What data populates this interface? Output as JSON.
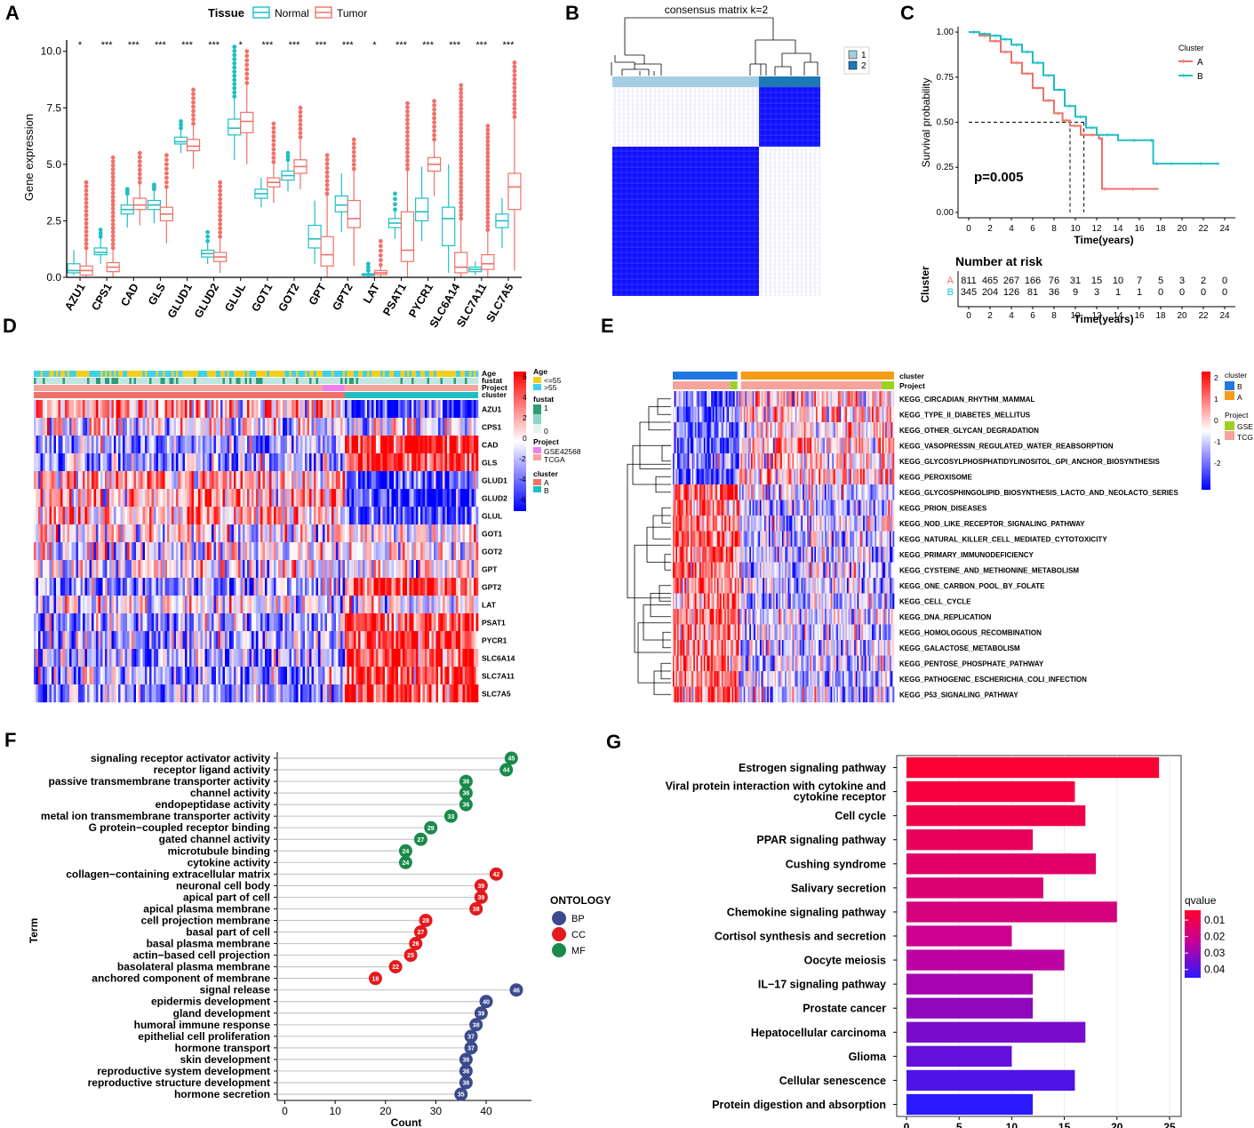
{
  "chart_data": [
    {
      "panel": "A",
      "type": "box",
      "ylabel": "Gene expression",
      "legend_title": "Tissue",
      "legend": [
        "Normal",
        "Tumor"
      ],
      "colors": {
        "normal": "#1fbfc4",
        "tumor": "#f0716a"
      },
      "ylim": [
        0,
        10.5
      ],
      "yticks": [
        "0.0",
        "2.5",
        "5.0",
        "7.5",
        "10.0"
      ],
      "yticks_values": [
        0,
        2.5,
        5,
        7.5,
        10
      ],
      "genes": [
        "AZU1",
        "CPS1",
        "CAD",
        "GLS",
        "GLUD1",
        "GLUD2",
        "GLUL",
        "GOT1",
        "GOT2",
        "GPT",
        "GPT2",
        "LAT",
        "PSAT1",
        "PYCR1",
        "SLC6A14",
        "SLC7A11",
        "SLC7A5"
      ],
      "significance": [
        "*",
        "***",
        "***",
        "***",
        "***",
        "***",
        "*",
        "***",
        "***",
        "***",
        "***",
        "*",
        "***",
        "***",
        "***",
        "***",
        "***"
      ],
      "normal": [
        [
          0.1,
          0.2,
          0.3,
          0.6,
          1.2
        ],
        [
          0.6,
          1.0,
          1.1,
          1.3,
          1.8
        ],
        [
          2.2,
          2.8,
          3.0,
          3.2,
          3.7
        ],
        [
          2.4,
          3.0,
          3.2,
          3.4,
          3.9
        ],
        [
          5.5,
          5.9,
          6.0,
          6.2,
          6.6
        ],
        [
          0.6,
          0.9,
          1.05,
          1.2,
          1.6
        ],
        [
          5.2,
          6.3,
          6.6,
          7.0,
          8.0
        ],
        [
          3.1,
          3.5,
          3.7,
          3.9,
          4.4
        ],
        [
          3.8,
          4.3,
          4.5,
          4.7,
          5.2
        ],
        [
          0.6,
          1.3,
          1.7,
          2.3,
          3.4
        ],
        [
          2.0,
          2.9,
          3.2,
          3.6,
          4.6
        ],
        [
          0.02,
          0.08,
          0.12,
          0.16,
          0.3
        ],
        [
          1.7,
          2.2,
          2.4,
          2.6,
          3.0
        ],
        [
          1.6,
          2.5,
          2.9,
          3.5,
          4.9
        ],
        [
          0.2,
          1.4,
          2.6,
          3.1,
          5.0
        ],
        [
          0.1,
          0.25,
          0.35,
          0.45,
          0.7
        ],
        [
          1.3,
          2.2,
          2.5,
          2.8,
          3.5
        ]
      ],
      "tumor": [
        [
          0.0,
          0.1,
          0.3,
          0.5,
          1.3
        ],
        [
          0.0,
          0.25,
          0.45,
          0.65,
          1.3
        ],
        [
          2.3,
          3.0,
          3.2,
          3.5,
          4.2
        ],
        [
          1.5,
          2.5,
          2.8,
          3.1,
          4.0
        ],
        [
          4.8,
          5.6,
          5.8,
          6.1,
          6.8
        ],
        [
          0.2,
          0.7,
          0.9,
          1.1,
          1.8
        ],
        [
          5.0,
          6.4,
          6.9,
          7.3,
          8.6
        ],
        [
          3.3,
          4.0,
          4.2,
          4.4,
          5.1
        ],
        [
          3.9,
          4.6,
          4.9,
          5.2,
          6.2
        ],
        [
          0.0,
          0.5,
          1.0,
          1.8,
          3.7
        ],
        [
          0.5,
          2.2,
          2.6,
          3.4,
          4.8
        ],
        [
          0.0,
          0.12,
          0.2,
          0.3,
          0.55
        ],
        [
          0.0,
          0.7,
          1.2,
          2.9,
          4.8
        ],
        [
          3.6,
          4.7,
          5.0,
          5.3,
          6.1
        ],
        [
          0.0,
          0.2,
          0.45,
          1.1,
          2.6
        ],
        [
          0.0,
          0.35,
          0.6,
          1.0,
          2.1
        ],
        [
          0.3,
          3.0,
          4.0,
          4.6,
          7.1
        ]
      ],
      "outlier_top_normal": [
        1.2,
        2.1,
        3.9,
        4.1,
        6.9,
        2.0,
        10.2,
        null,
        5.5,
        null,
        null,
        0.6,
        3.7,
        null,
        null,
        null,
        null
      ],
      "outlier_top_tumor": [
        4.2,
        5.3,
        5.5,
        5.4,
        8.3,
        4.2,
        10.0,
        6.8,
        7.5,
        5.4,
        6.1,
        1.6,
        7.7,
        7.8,
        8.5,
        6.7,
        9.5
      ]
    },
    {
      "panel": "B",
      "type": "heatmap",
      "title": "consensus matrix k=2",
      "legend": [
        "1",
        "2"
      ],
      "legend_colors": [
        "#a6cee3",
        "#1f78b4"
      ],
      "cluster_fractions": [
        0.7,
        0.3
      ]
    },
    {
      "panel": "C",
      "type": "line",
      "subtype": "kaplan-meier",
      "ylabel": "Survival probability",
      "xlabel": "Time(years)",
      "legend_title": "Cluster",
      "legend": [
        "A",
        "B"
      ],
      "colors": {
        "A": "#f0716a",
        "B": "#1fbfc4"
      },
      "pvalue": "p=0.005",
      "xlim": [
        -1,
        25
      ],
      "ylim": [
        -0.03,
        1.03
      ],
      "xticks": [
        "0",
        "2",
        "4",
        "6",
        "8",
        "10",
        "12",
        "14",
        "16",
        "18",
        "20",
        "22",
        "24"
      ],
      "xticks_values": [
        0,
        2,
        4,
        6,
        8,
        10,
        12,
        14,
        16,
        18,
        20,
        22,
        24
      ],
      "yticks": [
        "0.00",
        "0.25",
        "0.50",
        "0.75",
        "1.00"
      ],
      "yticks_values": [
        0,
        0.25,
        0.5,
        0.75,
        1.0
      ],
      "series": [
        {
          "name": "A",
          "x": [
            0,
            1,
            2,
            3,
            4,
            5,
            6,
            7,
            8,
            8.8,
            9.5,
            10.5,
            11,
            12.2,
            12.5,
            13,
            17.8
          ],
          "y": [
            1.0,
            0.98,
            0.95,
            0.89,
            0.83,
            0.77,
            0.69,
            0.62,
            0.55,
            0.51,
            0.48,
            0.43,
            0.43,
            0.41,
            0.13,
            0.13,
            0.13
          ]
        },
        {
          "name": "B",
          "x": [
            0,
            1,
            2,
            3,
            4,
            5,
            6,
            7,
            8,
            9,
            10,
            11,
            12,
            14,
            17,
            17.3,
            18,
            20,
            23.5
          ],
          "y": [
            1.0,
            0.99,
            0.98,
            0.96,
            0.93,
            0.89,
            0.83,
            0.76,
            0.68,
            0.59,
            0.53,
            0.47,
            0.43,
            0.4,
            0.4,
            0.27,
            0.27,
            0.27,
            0.27
          ]
        }
      ],
      "median_A": 9.5,
      "median_B": 10.8,
      "risk_table": {
        "title": "Number at risk",
        "ylabel": "Cluster",
        "xlabel": "Time(years)",
        "A": [
          "811",
          "465",
          "267",
          "166",
          "76",
          "31",
          "15",
          "10",
          "7",
          "5",
          "3",
          "2",
          "0"
        ],
        "B": [
          "345",
          "204",
          "126",
          "81",
          "36",
          "9",
          "3",
          "1",
          "1",
          "0",
          "0",
          "0",
          "0"
        ]
      }
    },
    {
      "panel": "D",
      "type": "heatmap",
      "genes": [
        "AZU1",
        "CPS1",
        "CAD",
        "GLS",
        "GLUD1",
        "GLUD2",
        "GLUL",
        "GOT1",
        "GOT2",
        "GPT",
        "GPT2",
        "LAT",
        "PSAT1",
        "PYCR1",
        "SLC6A14",
        "SLC7A11",
        "SLC7A5"
      ],
      "annotation_rows": [
        "Age",
        "fustat",
        "Project",
        "cluster"
      ],
      "cluster_A_fraction": 0.7,
      "direction_A": [
        1,
        0,
        -1,
        -1,
        1,
        1,
        1,
        0,
        0,
        0,
        -1,
        0,
        -1,
        -1,
        -1,
        -1,
        -1
      ],
      "scale_ticks": [
        "6",
        "4",
        "2",
        "0",
        "-2",
        "-4",
        "-6"
      ],
      "legend": {
        "age_title": "Age",
        "age": [
          "<=55",
          ">55"
        ],
        "fustat_title": "fustat",
        "fustat": [
          "1",
          "0"
        ],
        "project_title": "Project",
        "project": [
          "GSE42568",
          "TCGA"
        ],
        "cluster_title": "cluster",
        "cluster": [
          "A",
          "B"
        ]
      },
      "colors": {
        "age_le55": "#f2cf1d",
        "age_gt55": "#3fd0ef",
        "fustat_1": "#2e9d77",
        "fustat_0": "#bfe7e0",
        "gse": "#f07ef0",
        "tcga": "#f4a49b",
        "cluster_a": "#f0716a",
        "cluster_b": "#1fbfc4"
      }
    },
    {
      "panel": "E",
      "type": "heatmap",
      "pathways": [
        "KEGG_CIRCADIAN_RHYTHM_MAMMAL",
        "KEGG_TYPE_II_DIABETES_MELLITUS",
        "KEGG_OTHER_GLYCAN_DEGRADATION",
        "KEGG_VASOPRESSIN_REGULATED_WATER_REABSORPTION",
        "KEGG_GLYCOSYLPHOSPHATIDYLINOSITOL_GPI_ANCHOR_BIOSYNTHESIS",
        "KEGG_PEROXISOME",
        "KEGG_GLYCOSPHINGOLIPID_BIOSYNTHESIS_LACTO_AND_NEOLACTO_SERIES",
        "KEGG_PRION_DISEASES",
        "KEGG_NOD_LIKE_RECEPTOR_SIGNALING_PATHWAY",
        "KEGG_NATURAL_KILLER_CELL_MEDIATED_CYTOTOXICITY",
        "KEGG_PRIMARY_IMMUNODEFICIENCY",
        "KEGG_CYSTEINE_AND_METHIONINE_METABOLISM",
        "KEGG_ONE_CARBON_POOL_BY_FOLATE",
        "KEGG_CELL_CYCLE",
        "KEGG_DNA_REPLICATION",
        "KEGG_HOMOLOGOUS_RECOMBINATION",
        "KEGG_GALACTOSE_METABOLISM",
        "KEGG_PENTOSE_PHOSPHATE_PATHWAY",
        "KEGG_PATHOGENIC_ESCHERICHIA_COLI_INFECTION",
        "KEGG_P53_SIGNALING_PATHWAY"
      ],
      "annotation_rows": [
        "cluster",
        "Project"
      ],
      "cluster_B_fraction": 0.3,
      "scale_ticks": [
        "2",
        "1",
        "0",
        "-1",
        "-2"
      ],
      "legend": {
        "cluster_title": "cluster",
        "cluster": [
          "B",
          "A"
        ],
        "project_title": "Project",
        "project": [
          "GSE",
          "TCG"
        ]
      },
      "colors": {
        "cluster_b": "#1f78e0",
        "cluster_a": "#f59c16",
        "gse": "#9cd125",
        "tcga": "#f4a49b"
      }
    },
    {
      "panel": "F",
      "type": "scatter",
      "subtype": "lollipop",
      "xlabel": "Count",
      "ylabel": "Term",
      "legend_title": "ONTOLOGY",
      "legend": [
        "BP",
        "CC",
        "MF"
      ],
      "colors": {
        "BP": "#3b4a8c",
        "CC": "#e31a1c",
        "MF": "#1a8a4a"
      },
      "xlim": [
        -1.5,
        49
      ],
      "xticks": [
        "0",
        "10",
        "20",
        "30",
        "40"
      ],
      "xticks_values": [
        0,
        10,
        20,
        30,
        40
      ],
      "terms": [
        {
          "label": "signaling receptor activator activity",
          "count": 45,
          "ont": "MF"
        },
        {
          "label": "receptor ligand activity",
          "count": 44,
          "ont": "MF"
        },
        {
          "label": "passive transmembrane transporter activity",
          "count": 36,
          "ont": "MF"
        },
        {
          "label": "channel activity",
          "count": 36,
          "ont": "MF"
        },
        {
          "label": "endopeptidase activity",
          "count": 36,
          "ont": "MF"
        },
        {
          "label": "metal ion transmembrane transporter activity",
          "count": 33,
          "ont": "MF"
        },
        {
          "label": "G protein−coupled receptor binding",
          "count": 29,
          "ont": "MF"
        },
        {
          "label": "gated channel activity",
          "count": 27,
          "ont": "MF"
        },
        {
          "label": "microtubule binding",
          "count": 24,
          "ont": "MF"
        },
        {
          "label": "cytokine activity",
          "count": 24,
          "ont": "MF"
        },
        {
          "label": "collagen−containing extracellular matrix",
          "count": 42,
          "ont": "CC"
        },
        {
          "label": "neuronal cell body",
          "count": 39,
          "ont": "CC"
        },
        {
          "label": "apical part of cell",
          "count": 39,
          "ont": "CC"
        },
        {
          "label": "apical plasma membrane",
          "count": 38,
          "ont": "CC"
        },
        {
          "label": "cell projection membrane",
          "count": 28,
          "ont": "CC"
        },
        {
          "label": "basal part of cell",
          "count": 27,
          "ont": "CC"
        },
        {
          "label": "basal plasma membrane",
          "count": 26,
          "ont": "CC"
        },
        {
          "label": "actin−based cell projection",
          "count": 25,
          "ont": "CC"
        },
        {
          "label": "basolateral plasma membrane",
          "count": 22,
          "ont": "CC"
        },
        {
          "label": "anchored component of membrane",
          "count": 18,
          "ont": "CC"
        },
        {
          "label": "signal release",
          "count": 46,
          "ont": "BP"
        },
        {
          "label": "epidermis development",
          "count": 40,
          "ont": "BP"
        },
        {
          "label": "gland development",
          "count": 39,
          "ont": "BP"
        },
        {
          "label": "humoral immune response",
          "count": 38,
          "ont": "BP"
        },
        {
          "label": "epithelial cell proliferation",
          "count": 37,
          "ont": "BP"
        },
        {
          "label": "hormone transport",
          "count": 37,
          "ont": "BP"
        },
        {
          "label": "skin development",
          "count": 36,
          "ont": "BP"
        },
        {
          "label": "reproductive system development",
          "count": 36,
          "ont": "BP"
        },
        {
          "label": "reproductive structure development",
          "count": 36,
          "ont": "BP"
        },
        {
          "label": "hormone secretion",
          "count": 35,
          "ont": "BP"
        }
      ]
    },
    {
      "panel": "G",
      "type": "bar",
      "orientation": "horizontal",
      "legend_title": "qvalue",
      "legend_ticks": [
        "0.01",
        "0.02",
        "0.03",
        "0.04"
      ],
      "legend_ticks_values": [
        0.01,
        0.02,
        0.03,
        0.04
      ],
      "qvalue_range": [
        0.004,
        0.045
      ],
      "xlim": [
        0,
        25
      ],
      "xticks": [
        "0",
        "5",
        "10",
        "15",
        "20",
        "25"
      ],
      "xticks_values": [
        0,
        5,
        10,
        15,
        20,
        25
      ],
      "categories": [
        "Estrogen signaling pathway",
        "Viral protein interaction with cytokine and|cytokine receptor",
        "Cell cycle",
        "PPAR signaling pathway",
        "Cushing syndrome",
        "Salivary secretion",
        "Chemokine signaling pathway",
        "Cortisol synthesis and secretion",
        "Oocyte meiosis",
        "IL−17 signaling pathway",
        "Prostate cancer",
        "Hepatocellular carcinoma",
        "Glioma",
        "Cellular senescence",
        "Protein digestion and absorption"
      ],
      "values": [
        24,
        16,
        17,
        12,
        18,
        13,
        20,
        10,
        15,
        12,
        12,
        17,
        10,
        16,
        12
      ],
      "qvalues": [
        0.005,
        0.007,
        0.009,
        0.012,
        0.014,
        0.016,
        0.018,
        0.021,
        0.025,
        0.028,
        0.031,
        0.034,
        0.037,
        0.04,
        0.045
      ]
    }
  ],
  "panel_labels": [
    "A",
    "B",
    "C",
    "D",
    "E",
    "F",
    "G"
  ]
}
